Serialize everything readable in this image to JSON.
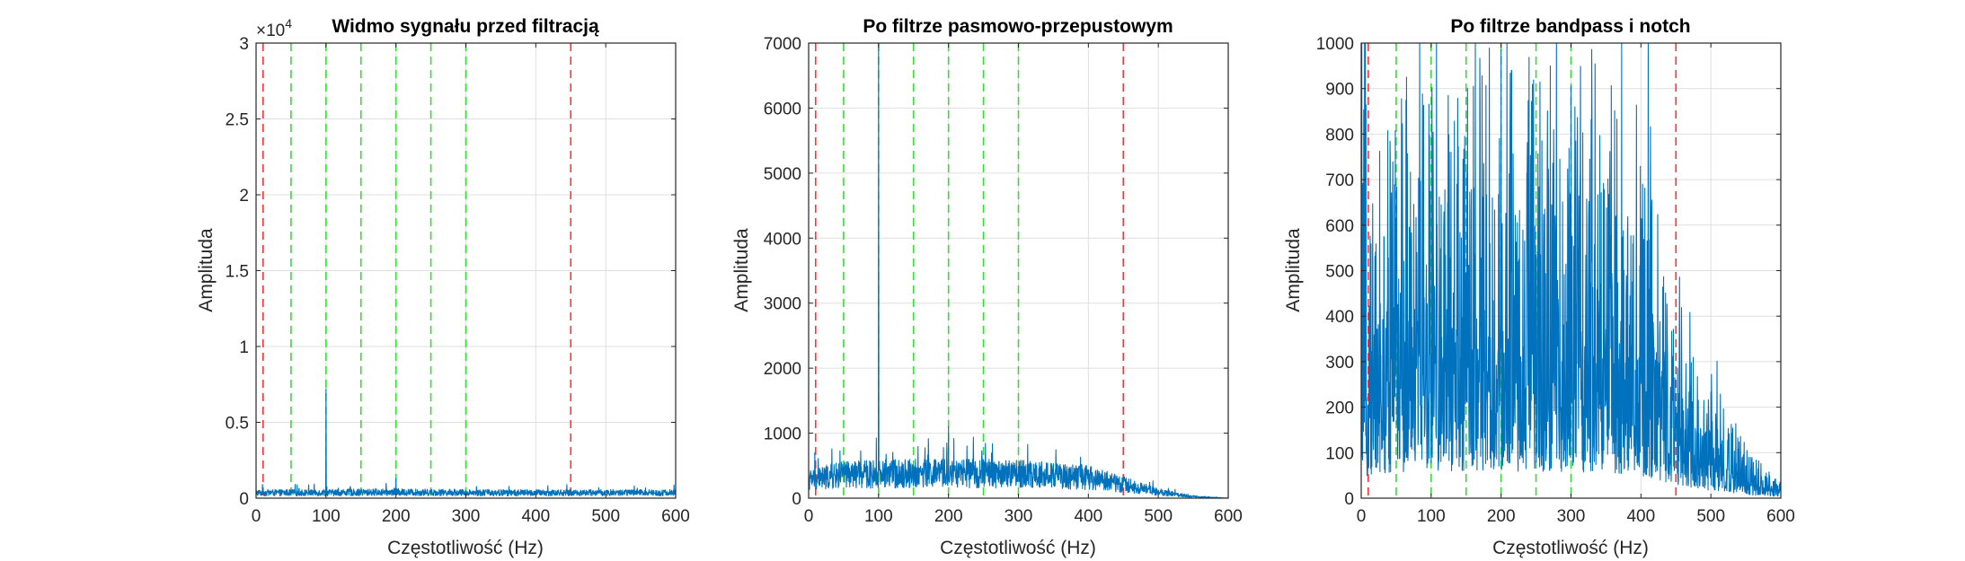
{
  "colors": {
    "signal": "#0072BD",
    "passband_edges": "#ff3333",
    "harmonics": "#33dd33",
    "grid": "#dfdfdf",
    "axis": "#262626"
  },
  "chart_data": [
    {
      "type": "line",
      "title": "Widmo sygnału przed filtracją",
      "xlabel": "Częstotliwość (Hz)",
      "ylabel": "Amplituda",
      "xlim": [
        0,
        600
      ],
      "ylim": [
        0,
        30000
      ],
      "xticks": [
        "0",
        "100",
        "200",
        "300",
        "400",
        "500",
        "600"
      ],
      "yticks": [
        "0",
        "0.5",
        "1",
        "1.5",
        "2",
        "2.5",
        "3"
      ],
      "y_exponent_label": "×10",
      "y_exponent_power": "4",
      "grid": true,
      "series": [
        {
          "style": "solid",
          "noise_level": [
            {
              "x": 0,
              "y": 420
            },
            {
              "x": 100,
              "y": 430
            },
            {
              "x": 200,
              "y": 460
            },
            {
              "x": 300,
              "y": 430
            },
            {
              "x": 400,
              "y": 420
            },
            {
              "x": 500,
              "y": 420
            },
            {
              "x": 600,
              "y": 420
            }
          ],
          "peaks": [
            {
              "x": 100,
              "y": 7200
            },
            {
              "x": 200,
              "y": 1300
            }
          ]
        }
      ],
      "vertical_lines": [
        {
          "x": 10,
          "color": "red",
          "style": "dashed"
        },
        {
          "x": 450,
          "color": "red",
          "style": "dashed"
        },
        {
          "x": 50,
          "color": "green",
          "style": "dashed"
        },
        {
          "x": 100,
          "color": "green",
          "style": "dashed"
        },
        {
          "x": 150,
          "color": "green",
          "style": "dashed"
        },
        {
          "x": 200,
          "color": "green",
          "style": "dashed"
        },
        {
          "x": 250,
          "color": "green",
          "style": "dashed"
        },
        {
          "x": 300,
          "color": "green",
          "style": "dashed"
        }
      ]
    },
    {
      "type": "line",
      "title": "Po filtrze pasmowo-przepustowym",
      "xlabel": "Częstotliwość (Hz)",
      "ylabel": "Amplituda",
      "xlim": [
        0,
        600
      ],
      "ylim": [
        0,
        7000
      ],
      "xticks": [
        "0",
        "100",
        "200",
        "300",
        "400",
        "500",
        "600"
      ],
      "yticks": [
        "0",
        "1000",
        "2000",
        "3000",
        "4000",
        "5000",
        "6000",
        "7000"
      ],
      "grid": true,
      "series": [
        {
          "style": "solid",
          "noise_level": [
            {
              "x": 0,
              "y": 330
            },
            {
              "x": 50,
              "y": 420
            },
            {
              "x": 150,
              "y": 450
            },
            {
              "x": 300,
              "y": 440
            },
            {
              "x": 400,
              "y": 370
            },
            {
              "x": 450,
              "y": 250
            },
            {
              "x": 500,
              "y": 110
            },
            {
              "x": 550,
              "y": 30
            },
            {
              "x": 600,
              "y": 0
            }
          ],
          "peaks": [
            {
              "x": 100,
              "y": 7000
            },
            {
              "x": 200,
              "y": 1100
            }
          ]
        }
      ],
      "vertical_lines": [
        {
          "x": 10,
          "color": "red",
          "style": "dashed"
        },
        {
          "x": 450,
          "color": "red",
          "style": "dashed"
        },
        {
          "x": 50,
          "color": "green",
          "style": "dashed"
        },
        {
          "x": 100,
          "color": "green",
          "style": "dashed"
        },
        {
          "x": 150,
          "color": "green",
          "style": "dashed"
        },
        {
          "x": 200,
          "color": "green",
          "style": "dashed"
        },
        {
          "x": 250,
          "color": "green",
          "style": "dashed"
        },
        {
          "x": 300,
          "color": "green",
          "style": "dashed"
        }
      ]
    },
    {
      "type": "line",
      "title": "Po filtrze bandpass i notch",
      "xlabel": "Częstotliwość (Hz)",
      "ylabel": "Amplituda",
      "xlim": [
        0,
        600
      ],
      "ylim": [
        0,
        1000
      ],
      "xticks": [
        "0",
        "100",
        "200",
        "300",
        "400",
        "500",
        "600"
      ],
      "yticks": [
        "0",
        "100",
        "200",
        "300",
        "400",
        "500",
        "600",
        "700",
        "800",
        "900",
        "1000"
      ],
      "grid": true,
      "series": [
        {
          "style": "solid",
          "noise_level": [
            {
              "x": 0,
              "y": 320
            },
            {
              "x": 50,
              "y": 380
            },
            {
              "x": 150,
              "y": 400
            },
            {
              "x": 250,
              "y": 390
            },
            {
              "x": 350,
              "y": 380
            },
            {
              "x": 400,
              "y": 330
            },
            {
              "x": 450,
              "y": 200
            },
            {
              "x": 500,
              "y": 110
            },
            {
              "x": 550,
              "y": 50
            },
            {
              "x": 600,
              "y": 20
            }
          ],
          "peaks": [
            {
              "x": 200,
              "y": 985
            },
            {
              "x": 300,
              "y": 905
            },
            {
              "x": 215,
              "y": 940
            }
          ]
        }
      ],
      "vertical_lines": [
        {
          "x": 10,
          "color": "red",
          "style": "dashed"
        },
        {
          "x": 450,
          "color": "red",
          "style": "dashed"
        },
        {
          "x": 50,
          "color": "green",
          "style": "dashed"
        },
        {
          "x": 100,
          "color": "green",
          "style": "dashed"
        },
        {
          "x": 150,
          "color": "green",
          "style": "dashed"
        },
        {
          "x": 200,
          "color": "green",
          "style": "dashed"
        },
        {
          "x": 250,
          "color": "green",
          "style": "dashed"
        },
        {
          "x": 300,
          "color": "green",
          "style": "dashed"
        }
      ]
    }
  ]
}
